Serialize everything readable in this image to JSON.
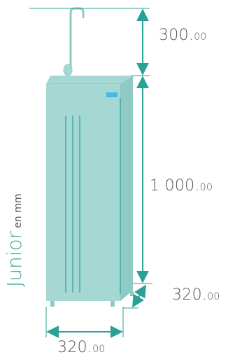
{
  "model": {
    "name": "Junior",
    "unit": "en mm"
  },
  "dimensions": {
    "top": {
      "int": "300.",
      "dec": "00"
    },
    "height": {
      "int": "1 000.",
      "dec": "00"
    },
    "depth": {
      "int": "320.",
      "dec": "00"
    },
    "width": {
      "int": "320.",
      "dec": "00"
    }
  },
  "colors": {
    "body": "#a6d8d3",
    "body_side": "#8fcac4",
    "edge": "#2ba195",
    "arrow": "#2ba195",
    "accent": "#4ab7e6",
    "text": "#555555",
    "model_text": "#3aa896"
  }
}
